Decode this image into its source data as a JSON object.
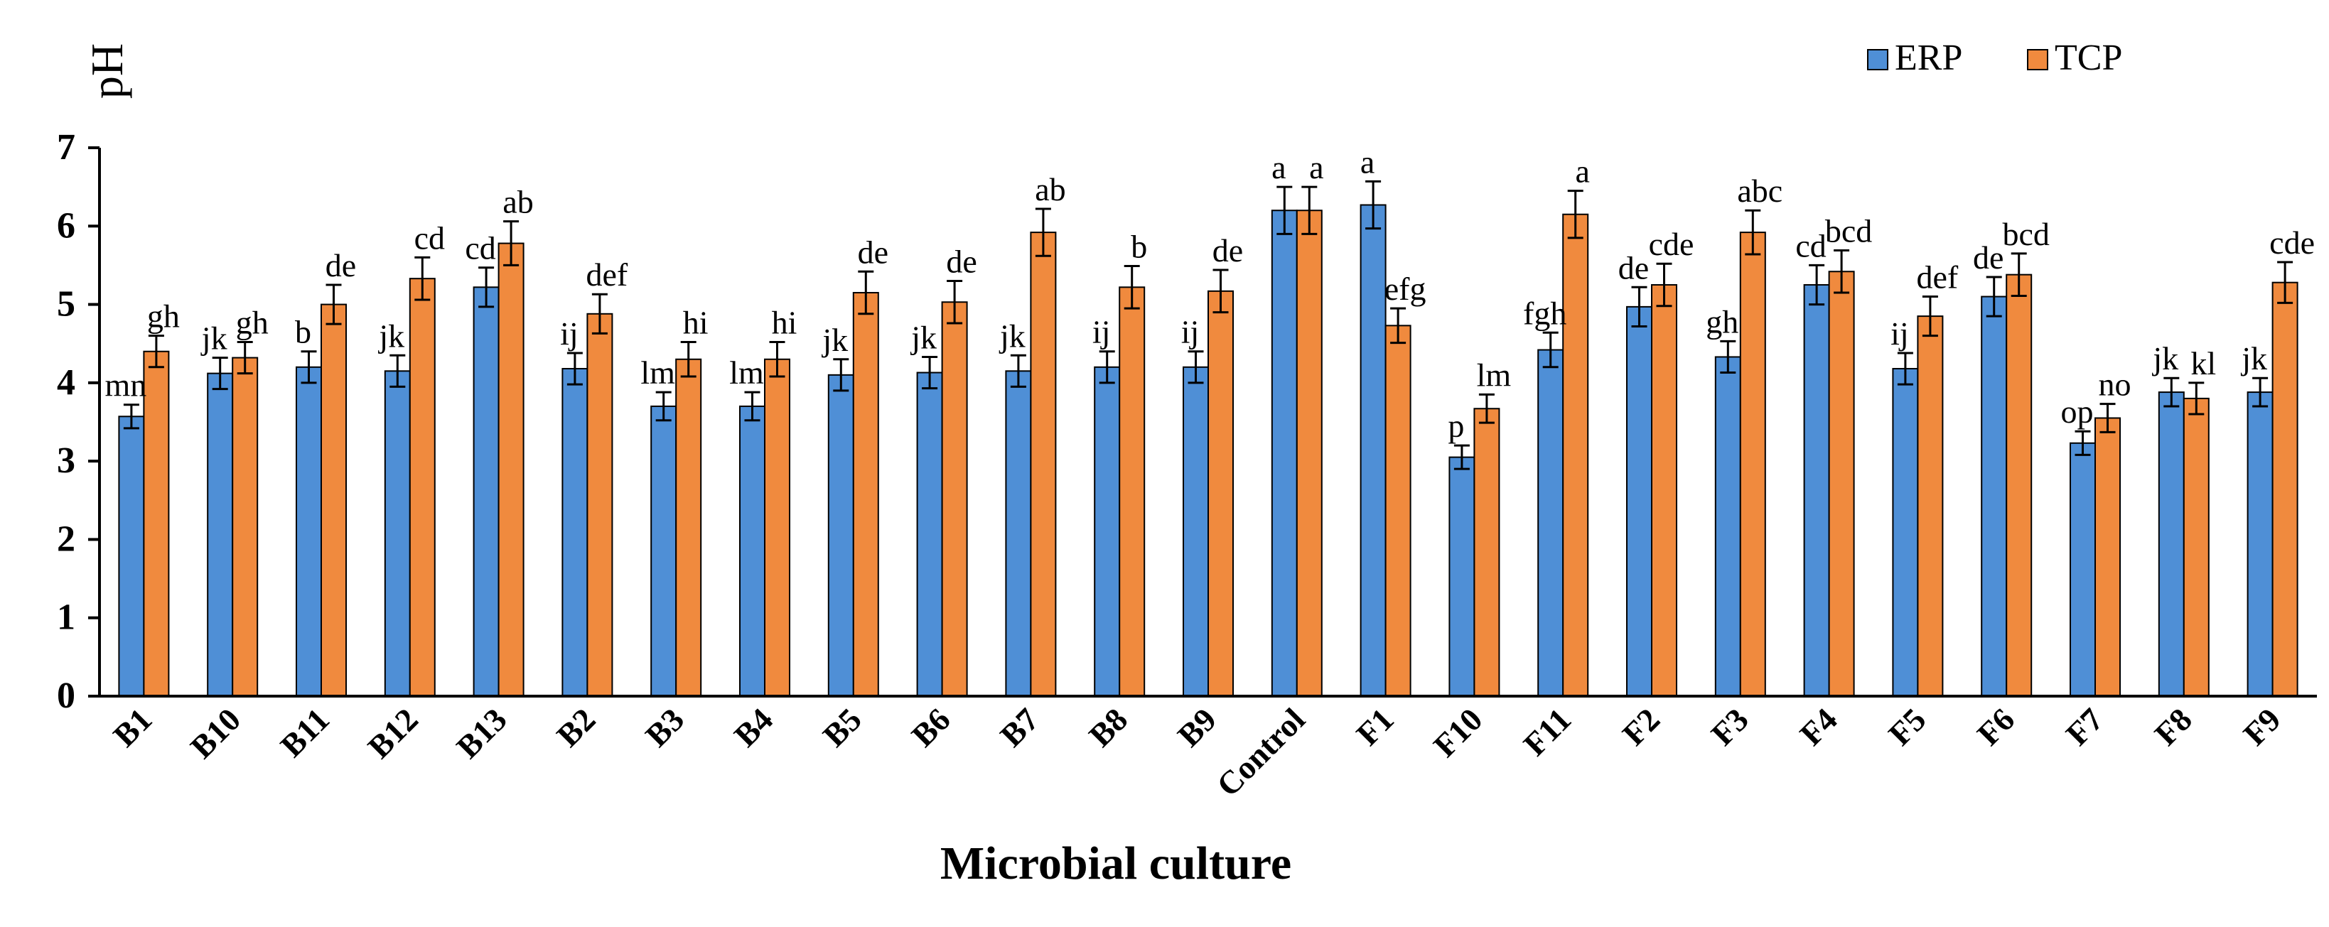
{
  "chart_data": {
    "type": "bar",
    "title": "",
    "xlabel": "Microbial culture",
    "ylabel": "pH",
    "ylim": [
      0,
      7
    ],
    "yticks": [
      "0",
      "1",
      "2",
      "3",
      "4",
      "5",
      "6",
      "7"
    ],
    "grid": false,
    "legend_position": "top-right",
    "categories": [
      "B1",
      "B10",
      "B11",
      "B12",
      "B13",
      "B2",
      "B3",
      "B4",
      "B5",
      "B6",
      "B7",
      "B8",
      "B9",
      "Control",
      "F1",
      "F10",
      "F11",
      "F2",
      "F3",
      "F4",
      "F5",
      "F6",
      "F7",
      "F8",
      "F9"
    ],
    "series": [
      {
        "name": "ERP",
        "color": "#4f8fd6",
        "values": [
          3.57,
          4.12,
          4.2,
          4.15,
          5.22,
          4.18,
          3.7,
          3.7,
          4.1,
          4.13,
          4.15,
          4.2,
          4.2,
          6.2,
          6.27,
          3.05,
          4.42,
          4.97,
          4.33,
          5.25,
          4.18,
          5.1,
          3.23,
          3.88,
          3.88
        ],
        "errors": [
          0.15,
          0.2,
          0.2,
          0.2,
          0.25,
          0.2,
          0.18,
          0.18,
          0.2,
          0.2,
          0.2,
          0.2,
          0.2,
          0.3,
          0.3,
          0.15,
          0.22,
          0.25,
          0.2,
          0.25,
          0.2,
          0.25,
          0.15,
          0.18,
          0.18
        ],
        "labels": [
          "mn",
          "jk",
          "b",
          "jk",
          "cd",
          "ij",
          "lm",
          "lm",
          "jk",
          "jk",
          "jk",
          "ij",
          "ij",
          "a",
          "a",
          "p",
          "fgh",
          "de",
          "gh",
          "cd",
          "ij",
          "de",
          "op",
          "jk",
          "jk"
        ]
      },
      {
        "name": "TCP",
        "color": "#f08a3e",
        "values": [
          4.4,
          4.32,
          5.0,
          5.33,
          5.78,
          4.88,
          4.3,
          4.3,
          5.15,
          5.03,
          5.92,
          5.22,
          5.17,
          6.2,
          4.73,
          3.67,
          6.15,
          5.25,
          5.92,
          5.42,
          4.85,
          5.38,
          3.55,
          3.8,
          5.28
        ],
        "errors": [
          0.2,
          0.2,
          0.25,
          0.27,
          0.28,
          0.25,
          0.22,
          0.22,
          0.27,
          0.27,
          0.3,
          0.27,
          0.27,
          0.3,
          0.22,
          0.18,
          0.3,
          0.27,
          0.28,
          0.27,
          0.25,
          0.27,
          0.18,
          0.2,
          0.26
        ],
        "labels": [
          "gh",
          "gh",
          "de",
          "cd",
          "ab",
          "def",
          "hi",
          "hi",
          "de",
          "de",
          "ab",
          "b",
          "de",
          "a",
          "efg",
          "lm",
          "a",
          "cde",
          "abc",
          "bcd",
          "def",
          "bcd",
          "no",
          "kl",
          "cde"
        ]
      }
    ]
  }
}
